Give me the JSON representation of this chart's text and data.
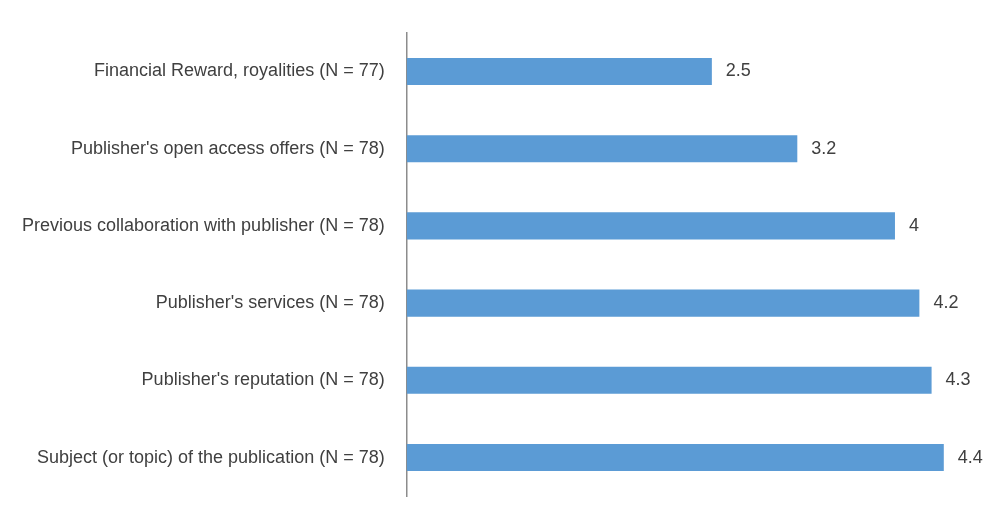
{
  "chart_data": {
    "type": "bar",
    "orientation": "horizontal",
    "categories": [
      "Financial Reward, royalities (N = 77)",
      "Publisher's open access offers (N = 78)",
      "Previous collaboration with publisher (N = 78)",
      "Publisher's services (N = 78)",
      "Publisher's reputation (N = 78)",
      "Subject (or topic) of the publication (N = 78)"
    ],
    "values": [
      2.5,
      3.2,
      4,
      4.2,
      4.3,
      4.4
    ],
    "color": "#5b9bd5",
    "data_labels": true,
    "grid": false
  }
}
